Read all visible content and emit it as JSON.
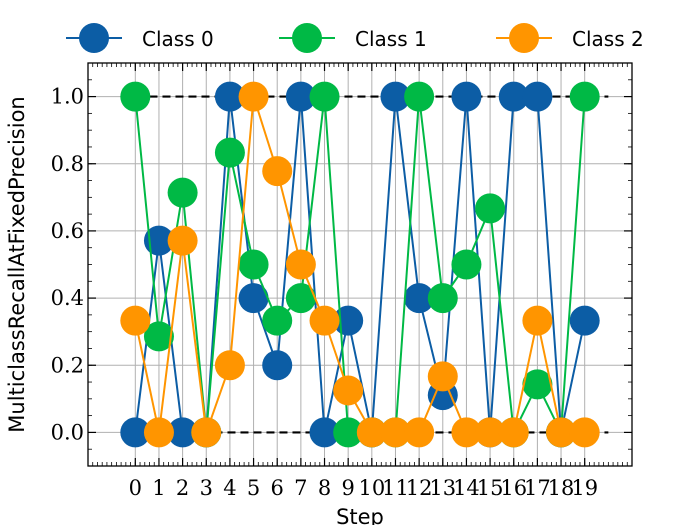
{
  "chart_data": {
    "type": "line",
    "xlabel": "Step",
    "ylabel": "MulticlassRecallAtFixedPrecision",
    "x": [
      0,
      1,
      2,
      3,
      4,
      5,
      6,
      7,
      8,
      9,
      10,
      11,
      12,
      13,
      14,
      15,
      16,
      17,
      18,
      19
    ],
    "xlim": [
      -2,
      21
    ],
    "ylim": [
      -0.1,
      1.1
    ],
    "yticks": [
      "0.0",
      "0.2",
      "0.4",
      "0.6",
      "0.8",
      "1.0"
    ],
    "grid": true,
    "legend_position": "top, outside plot area",
    "reference_lines": [
      0.0,
      1.0
    ],
    "series": [
      {
        "name": "Class 0",
        "color": "#0C5DA5",
        "values": [
          0.0,
          0.571,
          0.0,
          0.0,
          1.0,
          0.4,
          0.2,
          1.0,
          0.0,
          0.333,
          0.0,
          1.0,
          0.4,
          0.111,
          1.0,
          0.0,
          1.0,
          1.0,
          0.0,
          0.333
        ]
      },
      {
        "name": "Class 1",
        "color": "#00B945",
        "values": [
          1.0,
          0.286,
          0.714,
          0.0,
          0.833,
          0.5,
          0.333,
          0.4,
          1.0,
          0.0,
          0.0,
          0.0,
          1.0,
          0.4,
          0.5,
          0.667,
          0.0,
          0.143,
          0.0,
          1.0
        ]
      },
      {
        "name": "Class 2",
        "color": "#FF9500",
        "values": [
          0.333,
          0.0,
          0.571,
          0.0,
          0.2,
          1.0,
          0.778,
          0.5,
          0.333,
          0.125,
          0.0,
          0.0,
          0.0,
          0.167,
          0.0,
          0.0,
          0.0,
          0.333,
          0.0,
          0.0
        ]
      }
    ]
  }
}
